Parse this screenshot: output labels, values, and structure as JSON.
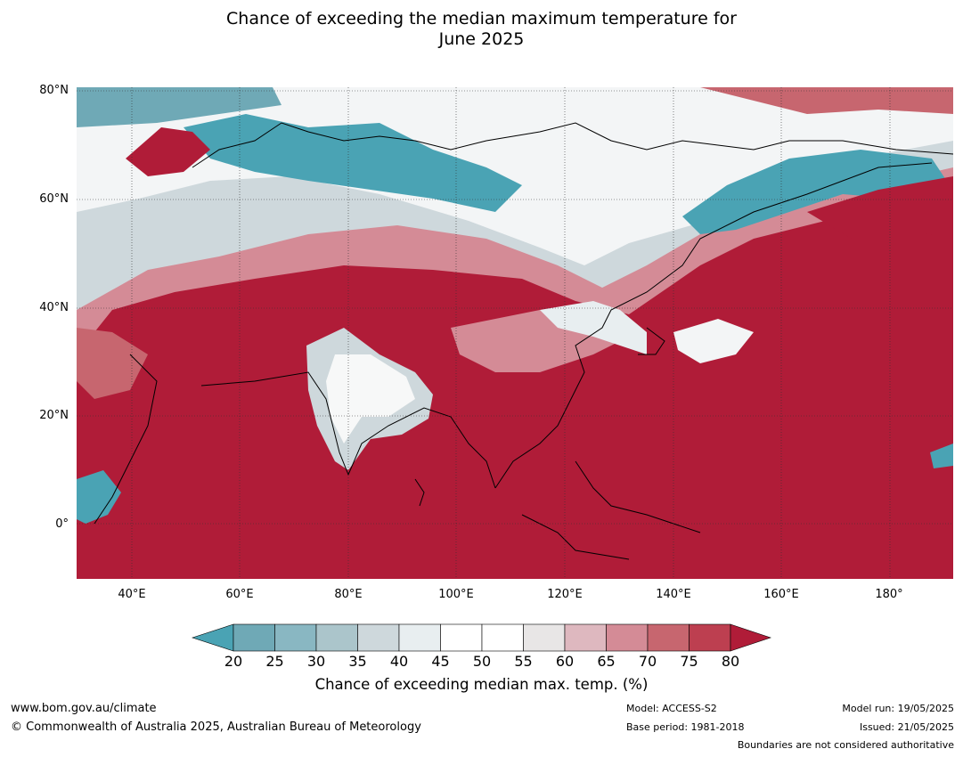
{
  "title_line1": "Chance of exceeding the median maximum temperature for",
  "title_line2": "June 2025",
  "lat_labels": [
    "80°N",
    "60°N",
    "40°N",
    "20°N",
    "0°"
  ],
  "lon_labels": [
    "40°E",
    "60°E",
    "80°E",
    "100°E",
    "120°E",
    "140°E",
    "160°E",
    "180°"
  ],
  "colorbar": {
    "ticks": [
      "20",
      "25",
      "30",
      "35",
      "40",
      "45",
      "50",
      "55",
      "60",
      "65",
      "70",
      "75",
      "80"
    ],
    "colors": [
      "#4aa3b4",
      "#6fa9b6",
      "#89b7c2",
      "#abc5cb",
      "#ced8dc",
      "#e8eef0",
      "#ffffff",
      "#ffffff",
      "#e8e6e6",
      "#deb8bf",
      "#d48b96",
      "#c7666f",
      "#bd3f50",
      "#b01c38"
    ],
    "label": "Chance of exceeding median max. temp. (%)"
  },
  "footer": {
    "url": "www.bom.gov.au/climate",
    "copyright": "© Commonwealth of Australia 2025, Australian Bureau of Meteorology",
    "model": "Model: ACCESS-S2",
    "base_period": "Base period: 1981-2018",
    "model_run": "Model run: 19/05/2025",
    "issued": "Issued: 21/05/2025",
    "disclaimer": "Boundaries are not considered authoritative"
  }
}
